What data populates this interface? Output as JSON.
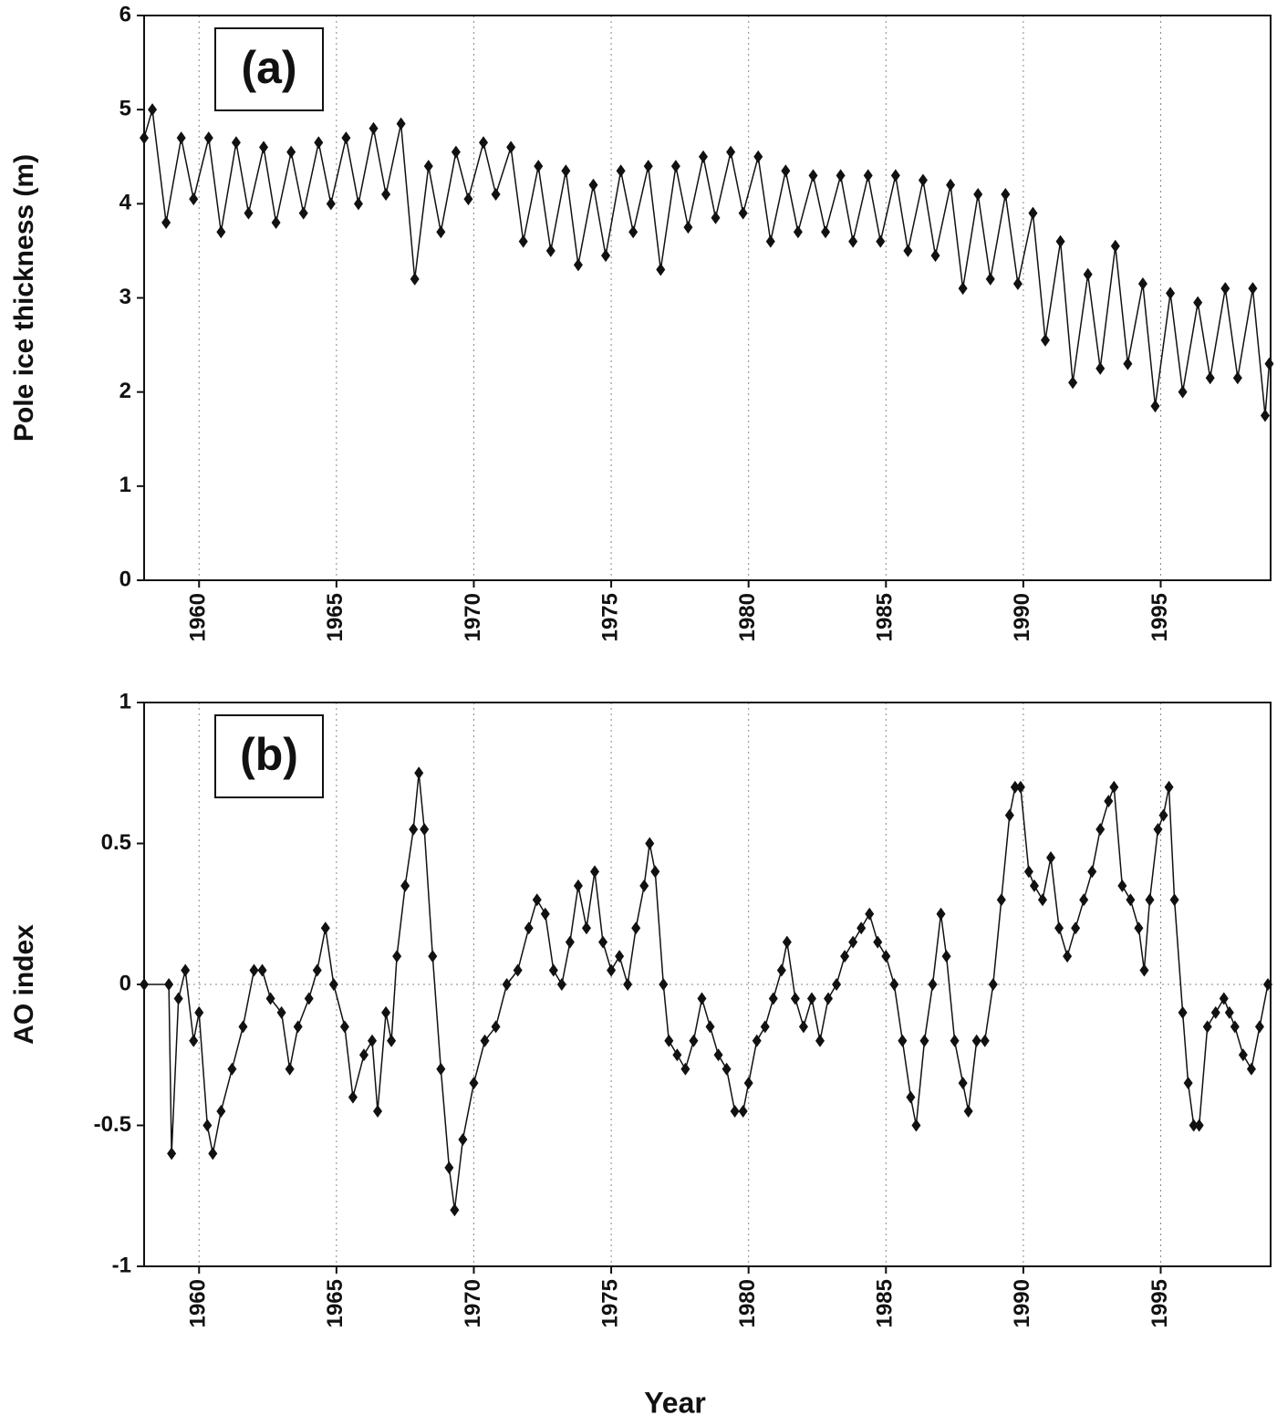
{
  "chart_data": [
    {
      "type": "line",
      "label": "(a)",
      "ylabel": "Pole ice thickness (m)",
      "xlim": [
        1958,
        1999
      ],
      "ylim": [
        0,
        6
      ],
      "xticks": [
        1960,
        1965,
        1970,
        1975,
        1980,
        1985,
        1990,
        1995
      ],
      "yticks": [
        0,
        1,
        2,
        3,
        4,
        5,
        6
      ],
      "grid": true,
      "color": "#111111",
      "x": [
        1958.0,
        1958.3,
        1958.8,
        1959.35,
        1959.8,
        1960.35,
        1960.8,
        1961.35,
        1961.8,
        1962.35,
        1962.8,
        1963.35,
        1963.8,
        1964.35,
        1964.8,
        1965.35,
        1965.8,
        1966.35,
        1966.8,
        1967.35,
        1967.85,
        1968.35,
        1968.8,
        1969.35,
        1969.8,
        1970.35,
        1970.8,
        1971.35,
        1971.8,
        1972.35,
        1972.8,
        1973.35,
        1973.8,
        1974.35,
        1974.8,
        1975.35,
        1975.8,
        1976.35,
        1976.8,
        1977.35,
        1977.8,
        1978.35,
        1978.8,
        1979.35,
        1979.8,
        1980.35,
        1980.8,
        1981.35,
        1981.8,
        1982.35,
        1982.8,
        1983.35,
        1983.8,
        1984.35,
        1984.8,
        1985.35,
        1985.8,
        1986.35,
        1986.8,
        1987.35,
        1987.8,
        1988.35,
        1988.8,
        1989.35,
        1989.8,
        1990.35,
        1990.8,
        1991.35,
        1991.8,
        1992.35,
        1992.8,
        1993.35,
        1993.8,
        1994.35,
        1994.8,
        1995.35,
        1995.8,
        1996.35,
        1996.8,
        1997.35,
        1997.8,
        1998.35,
        1998.8,
        1998.95
      ],
      "values": [
        4.7,
        5.0,
        3.8,
        4.7,
        4.05,
        4.7,
        3.7,
        4.65,
        3.9,
        4.6,
        3.8,
        4.55,
        3.9,
        4.65,
        4.0,
        4.7,
        4.0,
        4.8,
        4.1,
        4.85,
        3.2,
        4.4,
        3.7,
        4.55,
        4.05,
        4.65,
        4.1,
        4.6,
        3.6,
        4.4,
        3.5,
        4.35,
        3.35,
        4.2,
        3.45,
        4.35,
        3.7,
        4.4,
        3.3,
        4.4,
        3.75,
        4.5,
        3.85,
        4.55,
        3.9,
        4.5,
        3.6,
        4.35,
        3.7,
        4.3,
        3.7,
        4.3,
        3.6,
        4.3,
        3.6,
        4.3,
        3.5,
        4.25,
        3.45,
        4.2,
        3.1,
        4.1,
        3.2,
        4.1,
        3.15,
        3.9,
        2.55,
        3.6,
        2.1,
        3.25,
        2.25,
        3.55,
        2.3,
        3.15,
        1.85,
        3.05,
        2.0,
        2.95,
        2.15,
        3.1,
        2.15,
        3.1,
        1.75,
        2.3
      ]
    },
    {
      "type": "line",
      "label": "(b)",
      "ylabel": "AO index",
      "xlabel": "Year",
      "xlim": [
        1958,
        1999
      ],
      "ylim": [
        -1,
        1
      ],
      "xticks": [
        1960,
        1965,
        1970,
        1975,
        1980,
        1985,
        1990,
        1995
      ],
      "yticks": [
        -1,
        -0.5,
        0,
        0.5,
        1
      ],
      "grid": true,
      "zero_line": true,
      "color": "#111111",
      "x": [
        1958.0,
        1958.9,
        1959.0,
        1959.25,
        1959.5,
        1959.8,
        1960.0,
        1960.3,
        1960.5,
        1960.8,
        1961.2,
        1961.6,
        1962.0,
        1962.3,
        1962.6,
        1963.0,
        1963.3,
        1963.6,
        1964.0,
        1964.3,
        1964.6,
        1964.9,
        1965.3,
        1965.6,
        1966.0,
        1966.3,
        1966.5,
        1966.8,
        1967.0,
        1967.2,
        1967.5,
        1967.8,
        1968.0,
        1968.2,
        1968.5,
        1968.8,
        1969.1,
        1969.3,
        1969.6,
        1970.0,
        1970.4,
        1970.8,
        1971.2,
        1971.6,
        1972.0,
        1972.3,
        1972.6,
        1972.9,
        1973.2,
        1973.5,
        1973.8,
        1974.1,
        1974.4,
        1974.7,
        1975.0,
        1975.3,
        1975.6,
        1975.9,
        1976.2,
        1976.4,
        1976.6,
        1976.9,
        1977.1,
        1977.4,
        1977.7,
        1978.0,
        1978.3,
        1978.6,
        1978.9,
        1979.2,
        1979.5,
        1979.8,
        1980.0,
        1980.3,
        1980.6,
        1980.9,
        1981.2,
        1981.4,
        1981.7,
        1982.0,
        1982.3,
        1982.6,
        1982.9,
        1983.2,
        1983.5,
        1983.8,
        1984.1,
        1984.4,
        1984.7,
        1985.0,
        1985.3,
        1985.6,
        1985.9,
        1986.1,
        1986.4,
        1986.7,
        1987.0,
        1987.2,
        1987.5,
        1987.8,
        1988.0,
        1988.3,
        1988.6,
        1988.9,
        1989.2,
        1989.5,
        1989.7,
        1989.9,
        1990.2,
        1990.4,
        1990.7,
        1991.0,
        1991.3,
        1991.6,
        1991.9,
        1992.2,
        1992.5,
        1992.8,
        1993.1,
        1993.3,
        1993.6,
        1993.9,
        1994.2,
        1994.4,
        1994.6,
        1994.9,
        1995.1,
        1995.3,
        1995.5,
        1995.8,
        1996.0,
        1996.2,
        1996.4,
        1996.7,
        1997.0,
        1997.3,
        1997.5,
        1997.7,
        1998.0,
        1998.3,
        1998.6,
        1998.9
      ],
      "values": [
        0,
        0,
        -0.6,
        -0.05,
        0.05,
        -0.2,
        -0.1,
        -0.5,
        -0.6,
        -0.45,
        -0.3,
        -0.15,
        0.05,
        0.05,
        -0.05,
        -0.1,
        -0.3,
        -0.15,
        -0.05,
        0.05,
        0.2,
        0.0,
        -0.15,
        -0.4,
        -0.25,
        -0.2,
        -0.45,
        -0.1,
        -0.2,
        0.1,
        0.35,
        0.55,
        0.75,
        0.55,
        0.1,
        -0.3,
        -0.65,
        -0.8,
        -0.55,
        -0.35,
        -0.2,
        -0.15,
        0.0,
        0.05,
        0.2,
        0.3,
        0.25,
        0.05,
        0.0,
        0.15,
        0.35,
        0.2,
        0.4,
        0.15,
        0.05,
        0.1,
        0.0,
        0.2,
        0.35,
        0.5,
        0.4,
        0.0,
        -0.2,
        -0.25,
        -0.3,
        -0.2,
        -0.05,
        -0.15,
        -0.25,
        -0.3,
        -0.45,
        -0.45,
        -0.35,
        -0.2,
        -0.15,
        -0.05,
        0.05,
        0.15,
        -0.05,
        -0.15,
        -0.05,
        -0.2,
        -0.05,
        0.0,
        0.1,
        0.15,
        0.2,
        0.25,
        0.15,
        0.1,
        0.0,
        -0.2,
        -0.4,
        -0.5,
        -0.2,
        0.0,
        0.25,
        0.1,
        -0.2,
        -0.35,
        -0.45,
        -0.2,
        -0.2,
        0.0,
        0.3,
        0.6,
        0.7,
        0.7,
        0.4,
        0.35,
        0.3,
        0.45,
        0.2,
        0.1,
        0.2,
        0.3,
        0.4,
        0.55,
        0.65,
        0.7,
        0.35,
        0.3,
        0.2,
        0.05,
        0.3,
        0.55,
        0.6,
        0.7,
        0.3,
        -0.1,
        -0.35,
        -0.5,
        -0.5,
        -0.15,
        -0.1,
        -0.05,
        -0.1,
        -0.15,
        -0.25,
        -0.3,
        -0.15,
        0.0
      ]
    }
  ]
}
